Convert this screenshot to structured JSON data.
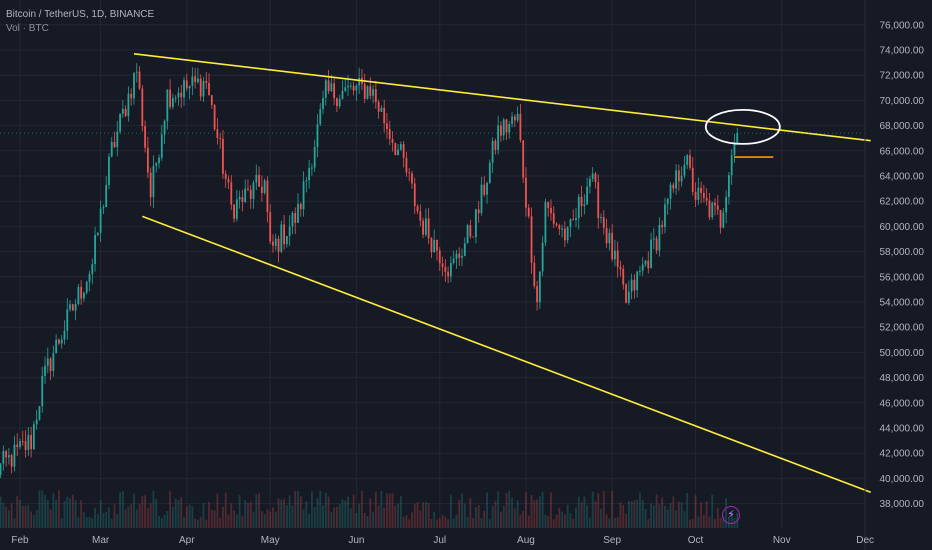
{
  "header": {
    "symbol_line": "Bitcoin / TetherUS, 1D, BINANCE",
    "volume_line": "Vol · BTC"
  },
  "badge": {
    "icon": "lightning-icon",
    "glyph": "⚡"
  },
  "colors": {
    "background": "#161a25",
    "up": "#26a69a",
    "down": "#ef5350",
    "trendline": "#ffeb3b",
    "marker": "#ff9800",
    "annotation": "#ffffff",
    "grid": "#232734"
  },
  "chart_data": {
    "type": "candlestick",
    "y_ticks": [
      "38,000.00",
      "40,000.00",
      "42,000.00",
      "44,000.00",
      "46,000.00",
      "48,000.00",
      "50,000.00",
      "52,000.00",
      "54,000.00",
      "56,000.00",
      "58,000.00",
      "60,000.00",
      "62,000.00",
      "64,000.00",
      "66,000.00",
      "68,000.00",
      "70,000.00",
      "72,000.00",
      "74,000.00",
      "76,000.00"
    ],
    "x_ticks": [
      "Feb",
      "Mar",
      "Apr",
      "May",
      "Jun",
      "Jul",
      "Aug",
      "Sep",
      "Oct",
      "Nov",
      "Dec"
    ],
    "ylim": [
      37000,
      77500
    ],
    "price_keypoints": [
      [
        "2024-01-23",
        40500
      ],
      [
        "2024-02-05",
        43000
      ],
      [
        "2024-02-09",
        47500
      ],
      [
        "2024-02-13",
        50000
      ],
      [
        "2024-02-27",
        57000
      ],
      [
        "2024-03-05",
        66000
      ],
      [
        "2024-03-14",
        72500
      ],
      [
        "2024-03-19",
        62500
      ],
      [
        "2024-03-25",
        70500
      ],
      [
        "2024-04-08",
        71500
      ],
      [
        "2024-04-17",
        61500
      ],
      [
        "2024-04-29",
        63500
      ],
      [
        "2024-05-01",
        58000
      ],
      [
        "2024-05-11",
        61000
      ],
      [
        "2024-05-21",
        70500
      ],
      [
        "2024-06-06",
        71000
      ],
      [
        "2024-06-18",
        65000
      ],
      [
        "2024-06-24",
        60500
      ],
      [
        "2024-07-05",
        56500
      ],
      [
        "2024-07-14",
        60500
      ],
      [
        "2024-07-22",
        67500
      ],
      [
        "2024-07-29",
        68500
      ],
      [
        "2024-08-05",
        54000
      ],
      [
        "2024-08-08",
        61500
      ],
      [
        "2024-08-16",
        59000
      ],
      [
        "2024-08-24",
        64000
      ],
      [
        "2024-09-06",
        54000
      ],
      [
        "2024-09-16",
        58500
      ],
      [
        "2024-09-27",
        65500
      ],
      [
        "2024-10-01",
        62500
      ],
      [
        "2024-10-10",
        60500
      ],
      [
        "2024-10-14",
        66000
      ],
      [
        "2024-10-16",
        67400
      ]
    ],
    "trendlines": [
      {
        "from": [
          "2024-03-13",
          73700
        ],
        "to": [
          "2024-12-03",
          66800
        ]
      },
      {
        "from": [
          "2024-03-16",
          60800
        ],
        "to": [
          "2024-12-03",
          38900
        ]
      }
    ],
    "annotations": [
      {
        "type": "ellipse",
        "center": [
          "2024-10-18",
          67900
        ]
      },
      {
        "type": "hline",
        "from": [
          "2024-10-15",
          65500
        ],
        "to": [
          "2024-10-20",
          65500
        ]
      }
    ]
  }
}
